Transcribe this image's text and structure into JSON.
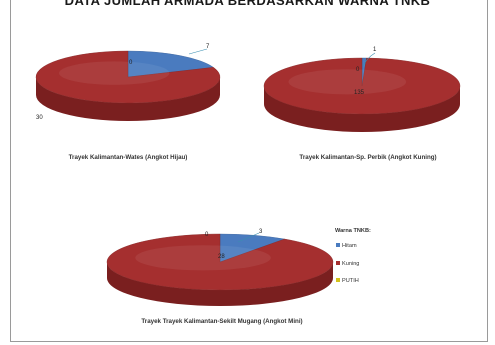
{
  "page": {
    "title": "DATA JUMLAH ARMADA BERDASARKAN WARNA TNKB"
  },
  "legend": {
    "title": "Warna TNKB:",
    "items": [
      {
        "label": "Hitam",
        "color": "#4a7bbf"
      },
      {
        "label": "Kuning",
        "color": "#a52f2f"
      },
      {
        "label": "PUTIH",
        "color": "#d4c21c"
      }
    ]
  },
  "chart_data": [
    {
      "type": "pie",
      "title": "Trayek Kalimantan-Wates (Angkot Hijau)",
      "categories": [
        "Hitam",
        "Kuning",
        "PUTIH"
      ],
      "values": [
        7,
        30,
        0
      ],
      "data_labels": [
        "7",
        "30",
        "0"
      ]
    },
    {
      "type": "pie",
      "title": "Trayek Kalimantan-Sp. Perbik (Angkot Kuning)",
      "categories": [
        "Hitam",
        "Kuning",
        "PUTIH"
      ],
      "values": [
        1,
        135,
        0
      ],
      "data_labels": [
        "1",
        "135",
        "0"
      ]
    },
    {
      "type": "pie",
      "title": "Trayek Trayek Kalimantan-Sekilt Mugang (Angkot Mini)",
      "categories": [
        "Hitam",
        "Kuning",
        "PUTIH"
      ],
      "values": [
        3,
        28,
        0
      ],
      "data_labels": [
        "3",
        "28",
        "0"
      ]
    }
  ]
}
